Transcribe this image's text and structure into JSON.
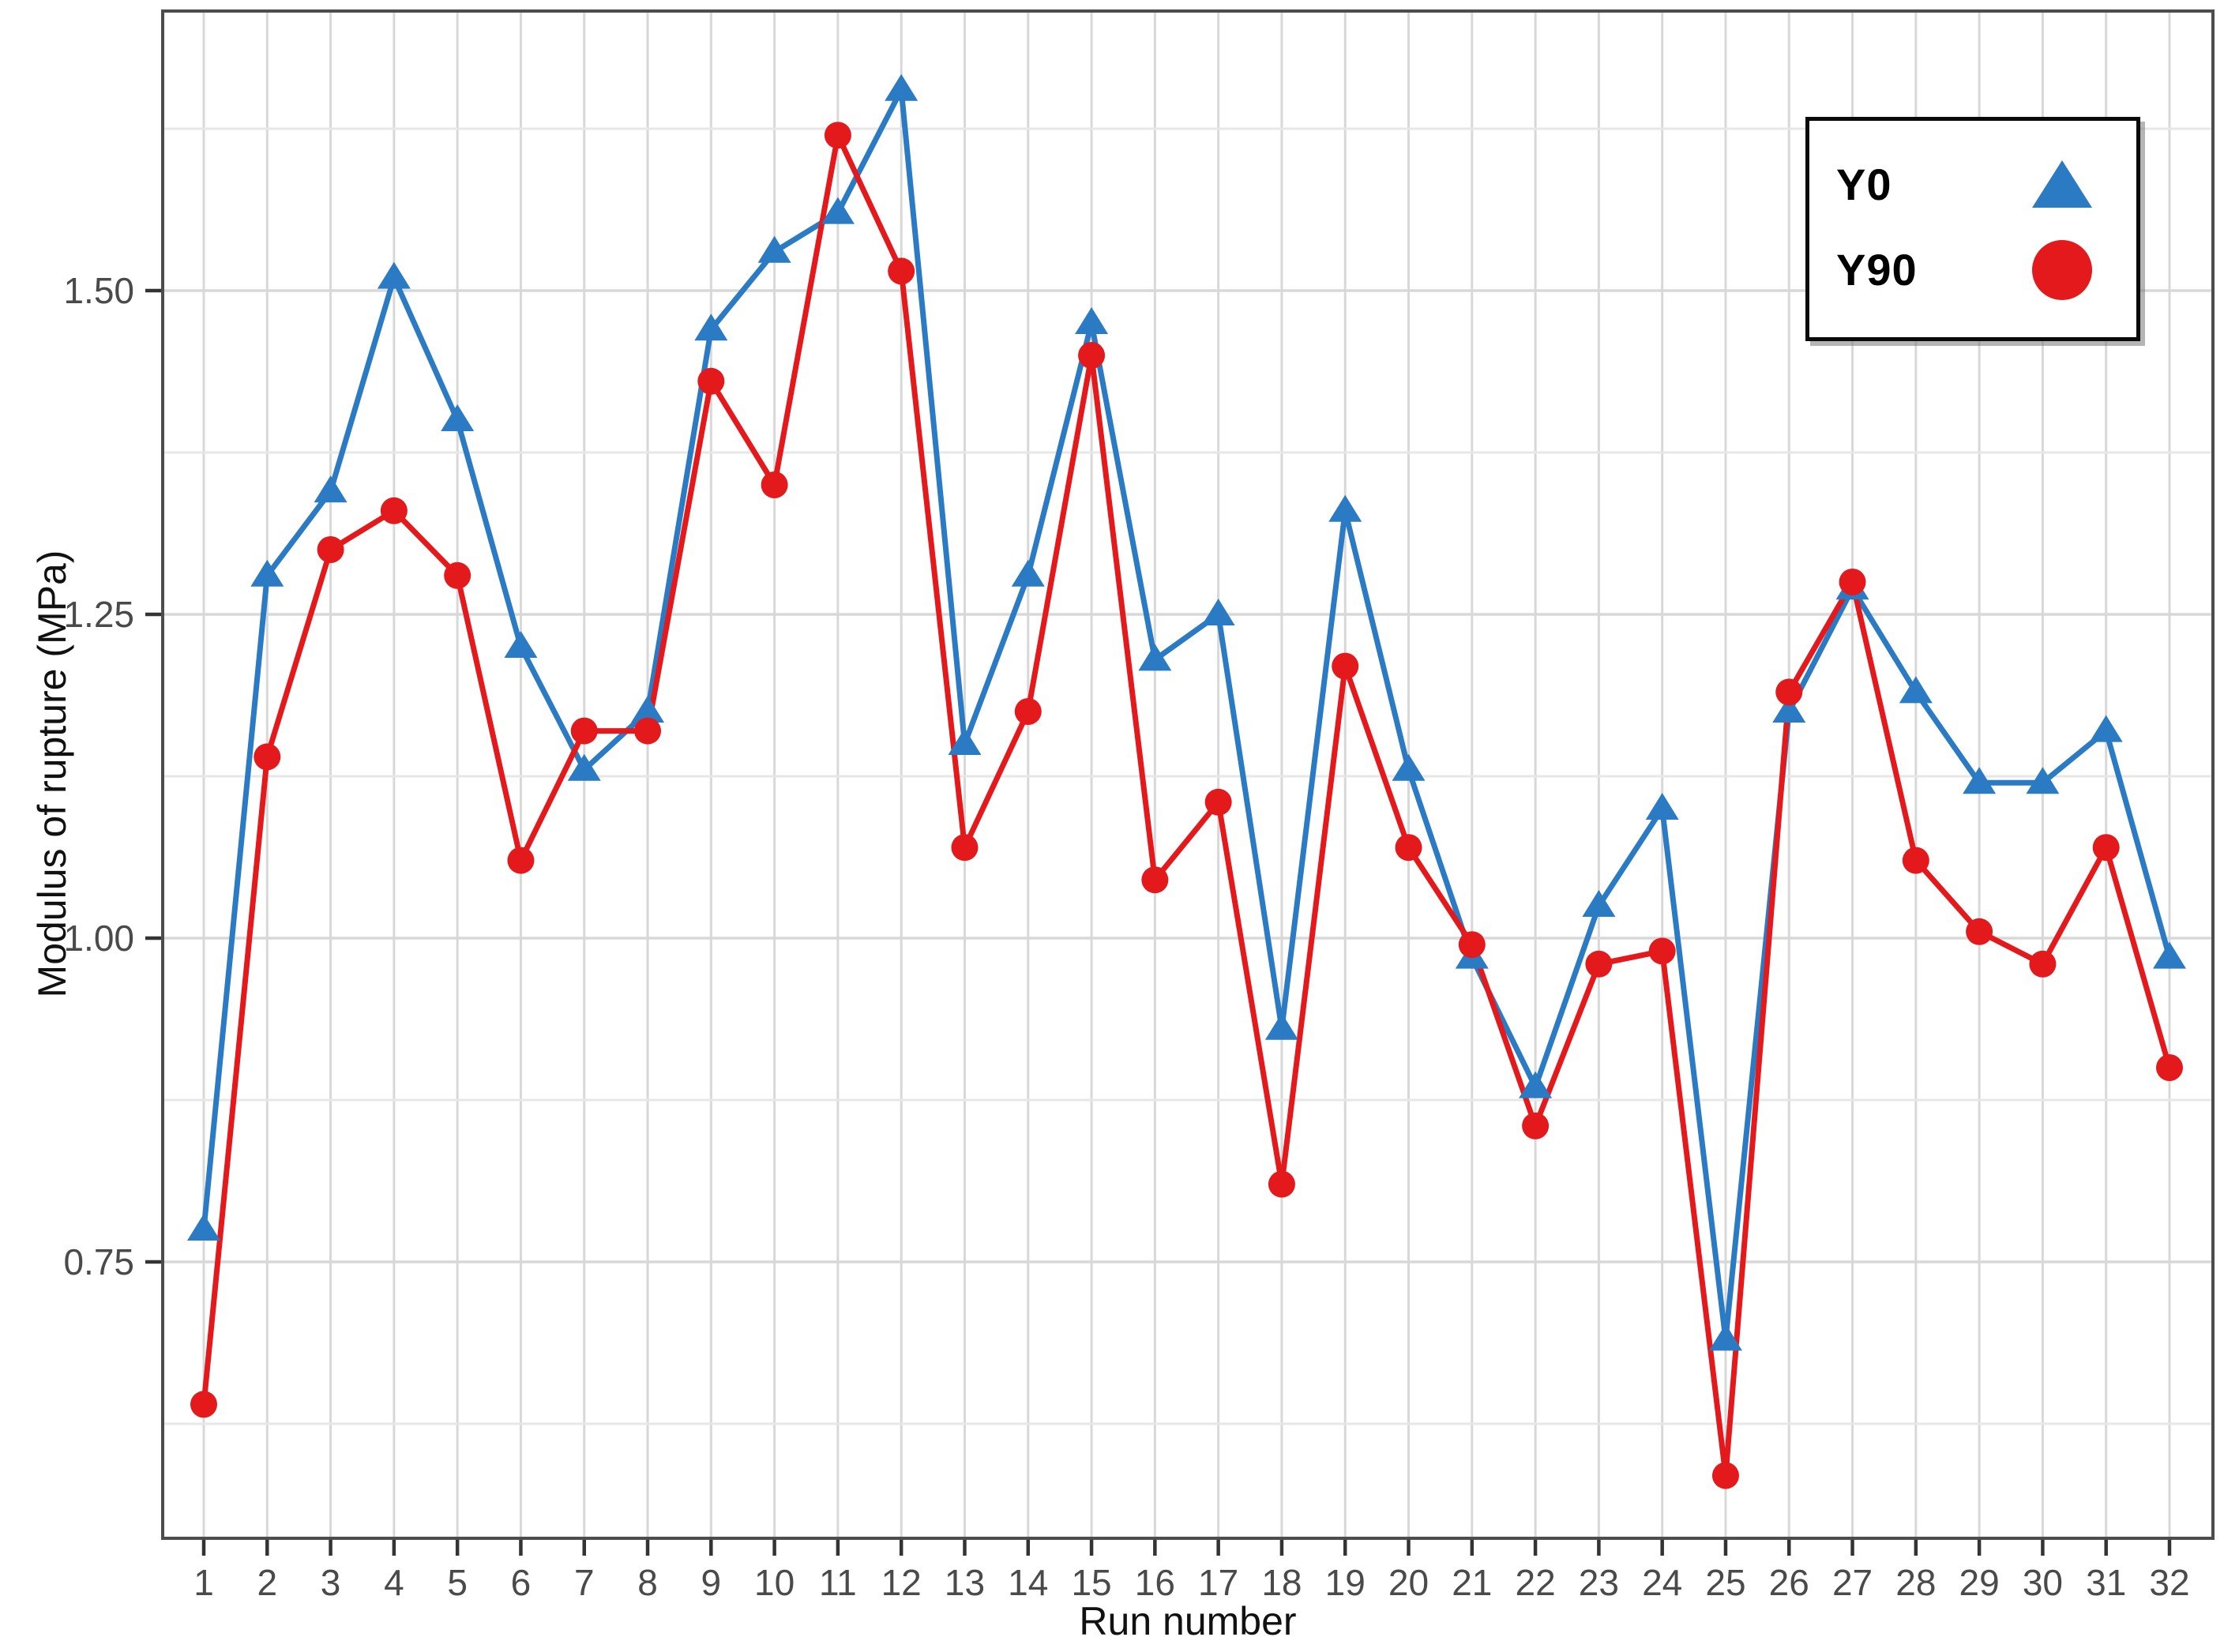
{
  "chart_data": {
    "type": "line",
    "title": "",
    "xlabel": "Run number",
    "ylabel": "Modulus of rupture (MPa)",
    "x_label_prefix": "",
    "x": [
      1,
      2,
      3,
      4,
      5,
      6,
      7,
      8,
      9,
      10,
      11,
      12,
      13,
      14,
      15,
      16,
      17,
      18,
      19,
      20,
      21,
      22,
      23,
      24,
      25,
      26,
      27,
      28,
      29,
      30,
      31,
      32
    ],
    "series": [
      {
        "name": "Y0",
        "marker": "triangle",
        "color": "#2a7ac4",
        "values": [
          0.775,
          1.28,
          1.345,
          1.51,
          1.4,
          1.225,
          1.13,
          1.175,
          1.47,
          1.53,
          1.56,
          1.655,
          1.15,
          1.28,
          1.475,
          1.215,
          1.25,
          0.93,
          1.33,
          1.13,
          0.985,
          0.885,
          1.025,
          1.1,
          0.69,
          1.175,
          1.27,
          1.19,
          1.12,
          1.12,
          1.16,
          0.985
        ]
      },
      {
        "name": "Y90",
        "marker": "circle",
        "color": "#e3191c",
        "values": [
          0.64,
          1.14,
          1.3,
          1.33,
          1.28,
          1.06,
          1.16,
          1.16,
          1.43,
          1.35,
          1.62,
          1.515,
          1.07,
          1.175,
          1.45,
          1.045,
          1.105,
          0.81,
          1.21,
          1.07,
          0.995,
          0.855,
          0.98,
          0.99,
          0.585,
          1.19,
          1.275,
          1.06,
          1.005,
          0.98,
          1.07,
          0.9
        ]
      }
    ],
    "y_major_ticks": [
      0.75,
      1.0,
      1.25,
      1.5
    ],
    "y_major_tick_labels": [
      "0.75",
      "1.00",
      "1.25",
      "1.50"
    ],
    "y_minor_gridlines": [
      0.625,
      0.875,
      1.125,
      1.375,
      1.625
    ],
    "ylim": [
      0.536,
      1.716
    ],
    "grid": "major+minor, light gray, vertical line at every run",
    "legend_position": "top-right"
  },
  "legend": {
    "items": [
      {
        "label": "Y0",
        "marker": "triangle"
      },
      {
        "label": "Y90",
        "marker": "circle"
      }
    ]
  },
  "colors": {
    "series_y0": "#2a7ac4",
    "series_y90": "#e3191c",
    "panel_border": "#4d4d4d",
    "major_grid": "#d8d8d8",
    "minor_grid": "#e7e7e7",
    "tick": "#333333",
    "tick_label": "#4a4a4a",
    "background": "#ffffff"
  }
}
